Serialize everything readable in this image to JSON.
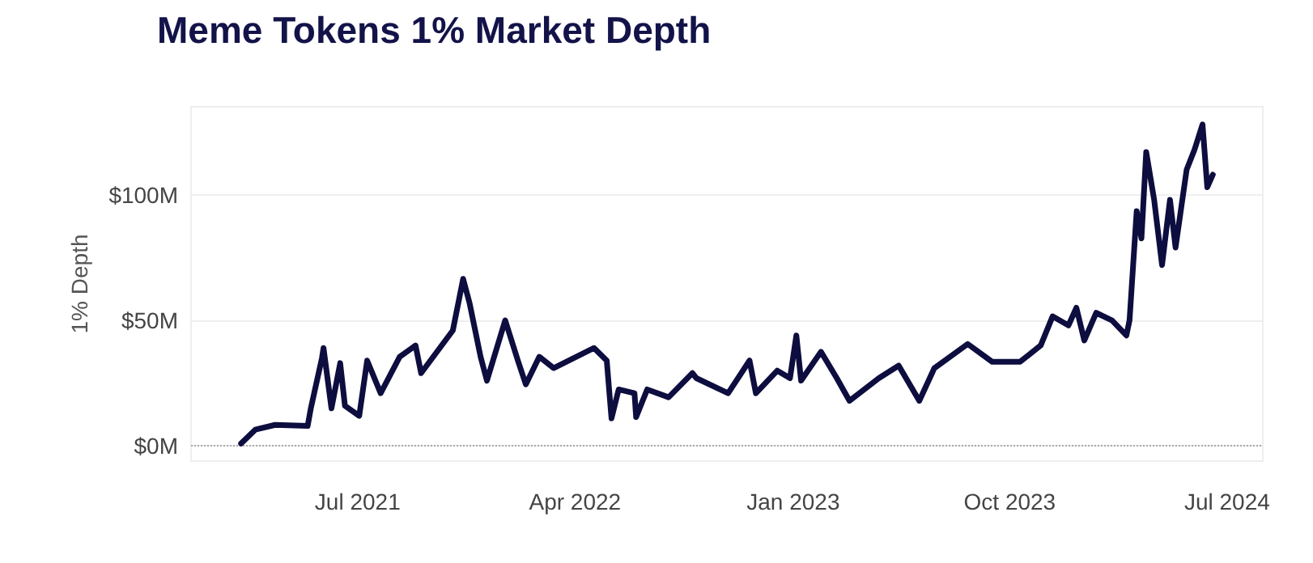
{
  "chart_data": {
    "type": "line",
    "title": "Meme Tokens 1% Market Depth",
    "ylabel": "1% Depth",
    "x": [
      "2021-02-04",
      "2021-02-22",
      "2021-03-19",
      "2021-04-29",
      "2021-05-03",
      "2021-05-17",
      "2021-05-19",
      "2021-05-29",
      "2021-06-09",
      "2021-06-15",
      "2021-07-03",
      "2021-07-13",
      "2021-07-30",
      "2021-08-23",
      "2021-09-12",
      "2021-09-19",
      "2021-10-29",
      "2021-11-11",
      "2021-11-19",
      "2021-12-03",
      "2021-12-11",
      "2022-01-03",
      "2022-01-19",
      "2022-01-29",
      "2022-02-15",
      "2022-03-05",
      "2022-04-25",
      "2022-05-11",
      "2022-05-17",
      "2022-05-26",
      "2022-06-15",
      "2022-06-17",
      "2022-07-01",
      "2022-07-28",
      "2022-08-27",
      "2022-09-01",
      "2022-10-11",
      "2022-11-07",
      "2022-11-15",
      "2022-12-12",
      "2022-12-28",
      "2023-01-05",
      "2023-01-11",
      "2023-02-05",
      "2023-02-25",
      "2023-03-13",
      "2023-04-19",
      "2023-05-14",
      "2023-06-09",
      "2023-06-28",
      "2023-08-09",
      "2023-09-09",
      "2023-10-14",
      "2023-11-09",
      "2023-11-24",
      "2023-12-14",
      "2023-12-24",
      "2024-01-03",
      "2024-01-18",
      "2024-02-07",
      "2024-02-25",
      "2024-02-29",
      "2024-03-09",
      "2024-03-15",
      "2024-03-21",
      "2024-03-31",
      "2024-04-10",
      "2024-04-20",
      "2024-04-27",
      "2024-05-11",
      "2024-05-21",
      "2024-05-31",
      "2024-06-06",
      "2024-06-13"
    ],
    "series": [
      {
        "color": "#0d0d3f",
        "values": [
          1,
          6.5,
          8.4,
          8,
          15,
          35,
          39,
          15,
          33,
          16,
          12,
          34,
          21,
          35.5,
          40,
          29,
          46,
          66.5,
          57,
          35.5,
          26,
          50,
          34,
          24.5,
          35.5,
          31,
          39,
          34,
          11,
          22.5,
          21,
          11.5,
          22.5,
          19.4,
          29,
          27,
          21,
          34,
          21,
          30,
          27,
          44,
          26,
          37.5,
          27,
          18,
          27,
          32,
          18,
          31,
          40.6,
          33.5,
          33.5,
          40,
          51.6,
          48,
          55,
          42,
          53,
          50,
          44,
          50,
          93.5,
          82.6,
          117,
          98,
          72,
          98,
          79,
          110,
          118,
          128,
          103,
          108
        ]
      }
    ],
    "xlim": [
      "2020-12-03",
      "2024-08-15"
    ],
    "xticks": [
      {
        "value": "2021-07-01",
        "label": "Jul 2021"
      },
      {
        "value": "2022-04-01",
        "label": "Apr 2022"
      },
      {
        "value": "2023-01-01",
        "label": "Jan 2023"
      },
      {
        "value": "2023-10-01",
        "label": "Oct 2023"
      },
      {
        "value": "2024-07-01",
        "label": "Jul 2024"
      }
    ],
    "ylim": [
      -6,
      135
    ],
    "yticks": [
      {
        "value": 0,
        "label": "$0M"
      },
      {
        "value": 50,
        "label": "$50M"
      },
      {
        "value": 100,
        "label": "$100M"
      }
    ],
    "grid": "y",
    "marker": "none",
    "line_style": "solid",
    "ref_lines": [
      {
        "axis": "y",
        "value": 0,
        "color": "#aaaaaa",
        "line_style": "dotted"
      }
    ]
  }
}
